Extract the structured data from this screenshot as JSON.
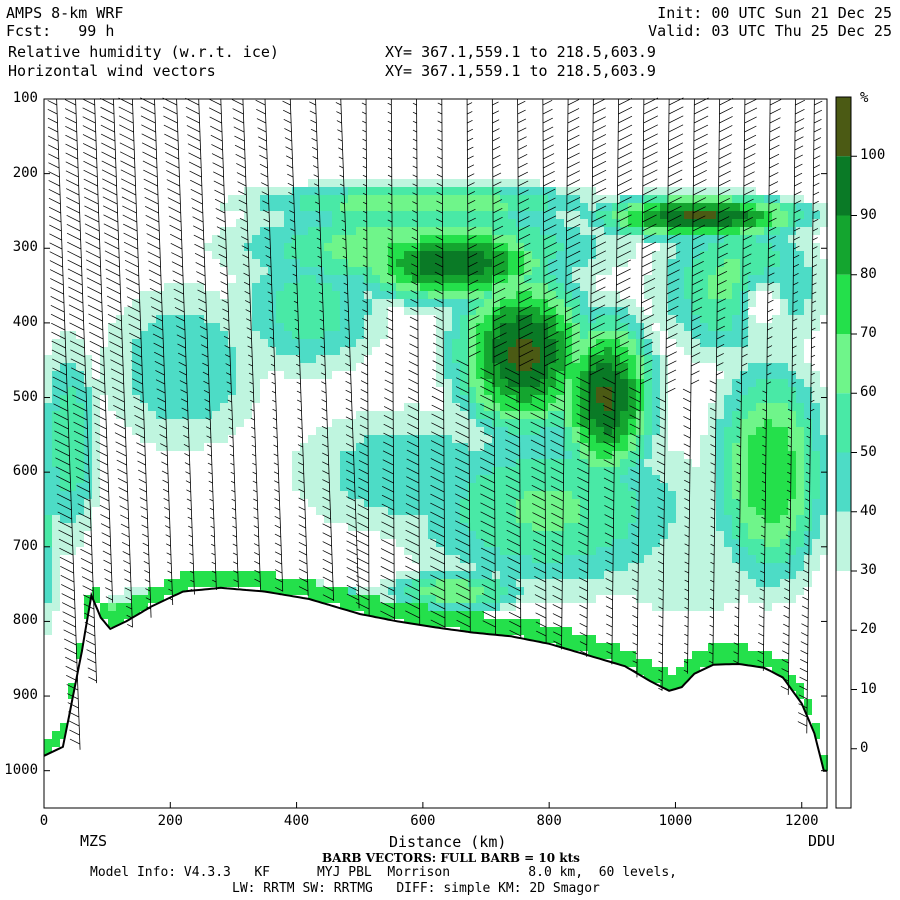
{
  "header": {
    "model": "AMPS 8-km WRF",
    "fcst": "Fcst:   99 h",
    "init": "Init: 00 UTC Sun 21 Dec 25",
    "valid": "Valid: 03 UTC Thu 25 Dec 25",
    "field1": "Relative humidity (w.r.t. ice)",
    "field2": "Horizontal wind vectors",
    "xy1": "XY= 367.1,559.1 to 218.5,603.9",
    "xy2": "XY= 367.1,559.1 to 218.5,603.9"
  },
  "chart_data": {
    "type": "heatmap",
    "title": "Relative humidity (w.r.t. ice)",
    "xlabel": "Distance (km)",
    "ylabel": "",
    "xlim": [
      0,
      1240
    ],
    "ylim": [
      1050,
      100
    ],
    "x_ticks": [
      "0",
      "200",
      "400",
      "600",
      "800",
      "1000",
      "1200"
    ],
    "y_ticks": [
      "100",
      "200",
      "300",
      "400",
      "500",
      "600",
      "700",
      "800",
      "900",
      "1000"
    ],
    "x_end_labels": {
      "left": "MZS",
      "right": "DDU"
    },
    "colorbar": {
      "unit": "%",
      "ticks": [
        "100",
        "90",
        "80",
        "70",
        "60",
        "50",
        "40",
        "30",
        "20",
        "10",
        "0"
      ],
      "bins": [
        {
          "from": 100,
          "to": 110,
          "color": "#4b5a14"
        },
        {
          "from": 90,
          "to": 100,
          "color": "#0a7a26"
        },
        {
          "from": 80,
          "to": 90,
          "color": "#14a52f"
        },
        {
          "from": 70,
          "to": 80,
          "color": "#24e04b"
        },
        {
          "from": 60,
          "to": 70,
          "color": "#6ff58a"
        },
        {
          "from": 50,
          "to": 60,
          "color": "#49e9a6"
        },
        {
          "from": 40,
          "to": 50,
          "color": "#4ddcc6"
        },
        {
          "from": 30,
          "to": 40,
          "color": "#bff5df"
        },
        {
          "from": -10,
          "to": 30,
          "color": "#ffffff"
        }
      ]
    },
    "terrain_pressure": {
      "x": [
        0,
        30,
        60,
        75,
        90,
        105,
        130,
        170,
        220,
        280,
        350,
        420,
        500,
        560,
        620,
        680,
        740,
        800,
        860,
        920,
        960,
        990,
        1010,
        1030,
        1060,
        1100,
        1140,
        1170,
        1200,
        1220,
        1235
      ],
      "p": [
        980,
        968,
        840,
        765,
        795,
        810,
        800,
        780,
        760,
        755,
        760,
        770,
        790,
        800,
        808,
        815,
        820,
        830,
        845,
        860,
        880,
        893,
        888,
        870,
        858,
        857,
        862,
        875,
        910,
        950,
        1000
      ]
    },
    "rh_cores": [
      {
        "x": 0,
        "p": 680,
        "rx": 40,
        "ry": 210,
        "rh": 52
      },
      {
        "x": 40,
        "p": 560,
        "rx": 70,
        "ry": 200,
        "rh": 58
      },
      {
        "x": 220,
        "p": 460,
        "rx": 200,
        "ry": 170,
        "rh": 50
      },
      {
        "x": 420,
        "p": 380,
        "rx": 180,
        "ry": 130,
        "rh": 56
      },
      {
        "x": 600,
        "p": 300,
        "rx": 400,
        "ry": 80,
        "rh": 72
      },
      {
        "x": 580,
        "p": 600,
        "rx": 300,
        "ry": 140,
        "rh": 48
      },
      {
        "x": 800,
        "p": 650,
        "rx": 330,
        "ry": 160,
        "rh": 62
      },
      {
        "x": 1020,
        "p": 720,
        "rx": 230,
        "ry": 140,
        "rh": 40
      },
      {
        "x": 1100,
        "p": 350,
        "rx": 180,
        "ry": 140,
        "rh": 65
      },
      {
        "x": 1150,
        "p": 600,
        "rx": 120,
        "ry": 200,
        "rh": 80
      },
      {
        "x": 650,
        "p": 320,
        "rx": 200,
        "ry": 70,
        "rh": 100
      },
      {
        "x": 760,
        "p": 440,
        "rx": 140,
        "ry": 140,
        "rh": 103
      },
      {
        "x": 890,
        "p": 500,
        "rx": 100,
        "ry": 140,
        "rh": 102
      },
      {
        "x": 1040,
        "p": 258,
        "rx": 210,
        "ry": 38,
        "rh": 103
      },
      {
        "x": 600,
        "p": 240,
        "rx": 380,
        "ry": 40,
        "rh": 70
      },
      {
        "x": 330,
        "p": 770,
        "rx": 260,
        "ry": 28,
        "rh": 78
      },
      {
        "x": 120,
        "p": 790,
        "rx": 70,
        "ry": 25,
        "rh": 74
      },
      {
        "x": 650,
        "p": 760,
        "rx": 160,
        "ry": 40,
        "rh": 68
      },
      {
        "x": 1140,
        "p": 380,
        "rx": 40,
        "ry": 45,
        "rh": 20
      }
    ],
    "barb_columns_x": [
      20,
      50,
      80,
      110,
      140,
      175,
      210,
      245,
      280,
      315,
      350,
      390,
      430,
      470,
      510,
      550,
      590,
      630,
      670,
      710,
      750,
      790,
      830,
      870,
      910,
      950,
      990,
      1030,
      1070,
      1110,
      1150,
      1190,
      1220
    ]
  },
  "footer": {
    "xlabel_text": "Distance (km)",
    "barb_note": "BARB VECTORS: FULL BARB = 10 kts",
    "model_info": "Model Info: V4.3.3   KF      MYJ PBL  Morrison          8.0 km,  60 levels,",
    "model_info2": "LW: RRTM SW: RRTMG   DIFF: simple KM: 2D Smagor"
  }
}
